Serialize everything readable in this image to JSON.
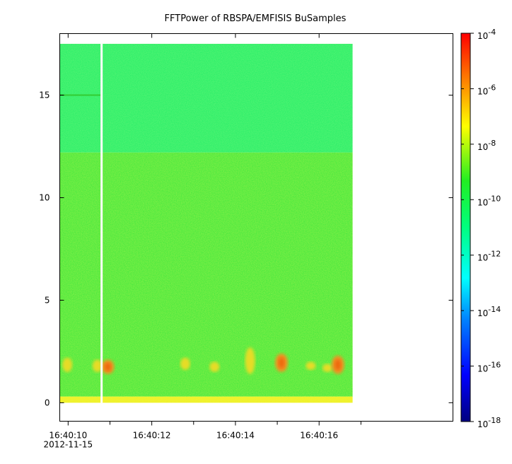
{
  "chart_data": {
    "type": "heatmap",
    "title": "FFTPower of RBSPA/EMFISIS  BuSamples",
    "xlabel": "",
    "ylabel": "",
    "x_axis": {
      "unit": "time",
      "range": [
        "16:40:09.8",
        "16:40:19.2"
      ],
      "data_extent": [
        "16:40:09.8",
        "16:40:16.8"
      ],
      "major_ticks": [
        "16:40:10",
        "16:40:12",
        "16:40:14",
        "16:40:16"
      ],
      "minor_ticks": [
        "16:40:11",
        "16:40:13",
        "16:40:15",
        "16:40:17"
      ],
      "date_label": "2012-11-15"
    },
    "y_axis": {
      "range": [
        -0.9,
        18.0
      ],
      "data_extent": [
        0,
        17.5
      ],
      "ticks": [
        0,
        5,
        10,
        15
      ],
      "tick_labels": [
        "0",
        "5",
        "10",
        "15"
      ]
    },
    "colorbar": {
      "scale": "log",
      "range": [
        1e-18,
        0.0001
      ],
      "ticks": [
        1e-18,
        1e-16,
        1e-14,
        1e-12,
        1e-10,
        1e-08,
        1e-06,
        0.0001
      ],
      "tick_labels": [
        {
          "base": "10",
          "exp": "-18"
        },
        {
          "base": "10",
          "exp": "-16"
        },
        {
          "base": "10",
          "exp": "-14"
        },
        {
          "base": "10",
          "exp": "-12"
        },
        {
          "base": "10",
          "exp": "-10"
        },
        {
          "base": "10",
          "exp": "-8"
        },
        {
          "base": "10",
          "exp": "-6"
        },
        {
          "base": "10",
          "exp": "-4"
        }
      ],
      "colormap": [
        "#00007f",
        "#0000ff",
        "#007fff",
        "#00ffff",
        "#00ff7f",
        "#22ee22",
        "#ffff00",
        "#ff7f00",
        "#ff0000"
      ]
    },
    "regions": [
      {
        "y_range": [
          12.2,
          17.5
        ],
        "level": 3e-13,
        "color": "#22ee66"
      },
      {
        "y_range": [
          0.3,
          12.2
        ],
        "level": 1e-10,
        "color": "#3ce63c"
      },
      {
        "y_range": [
          0.0,
          0.3
        ],
        "level": 1e-08,
        "color": "#f0ee20"
      }
    ],
    "data_gap": {
      "time": "16:40:10.8"
    },
    "line_feature": {
      "y": 15.0,
      "time_range": [
        "16:40:09.8",
        "16:40:10.8"
      ],
      "level": 1e-10
    },
    "bursts": [
      {
        "time": "16:40:09.98",
        "y_range": [
          1.5,
          2.2
        ],
        "level": 3e-08
      },
      {
        "time": "16:40:10.7",
        "y_range": [
          1.5,
          2.1
        ],
        "level": 1e-08
      },
      {
        "time": "16:40:10.95",
        "y_range": [
          1.4,
          2.1
        ],
        "level": 1e-06
      },
      {
        "time": "16:40:12.8",
        "y_range": [
          1.6,
          2.2
        ],
        "level": 3e-08
      },
      {
        "time": "16:40:13.5",
        "y_range": [
          1.5,
          2.0
        ],
        "level": 3e-08
      },
      {
        "time": "16:40:14.35",
        "y_range": [
          1.4,
          2.7
        ],
        "level": 1e-07
      },
      {
        "time": "16:40:15.1",
        "y_range": [
          1.5,
          2.4
        ],
        "level": 1e-06
      },
      {
        "time": "16:40:15.8",
        "y_range": [
          1.6,
          2.0
        ],
        "level": 3e-08
      },
      {
        "time": "16:40:16.2",
        "y_range": [
          1.5,
          1.9
        ],
        "level": 3e-08
      },
      {
        "time": "16:40:16.45",
        "y_range": [
          1.4,
          2.3
        ],
        "level": 1e-06
      }
    ]
  }
}
